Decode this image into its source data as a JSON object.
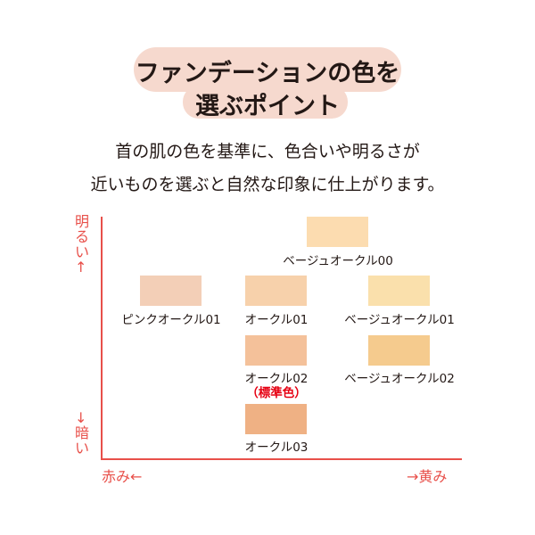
{
  "title": {
    "line1": "ファンデーションの色を",
    "line2": "選ぶポイント",
    "bg": "#f6d9ce"
  },
  "lead": {
    "line1": "首の肌の色を基準に、色合いや明るさが",
    "line2": "近いものを選ぶと自然な印象に仕上がります。"
  },
  "axes": {
    "color": "#e8504a",
    "top": "明るい↑",
    "bottom": "↓暗い",
    "left": "赤み←",
    "right": "→黄み"
  },
  "shades": [
    {
      "name": "ベージュオークル00",
      "color": "#fcdcb0"
    },
    {
      "name": "ピンクオークル01",
      "color": "#f3cfb7"
    },
    {
      "name": "オークル01",
      "color": "#f7d1ab"
    },
    {
      "name": "ベージュオークル01",
      "color": "#fae0ac"
    },
    {
      "name": "オークル02",
      "color": "#f4c19a",
      "note": "（標準色）"
    },
    {
      "name": "ベージュオークル02",
      "color": "#f5cb8e"
    },
    {
      "name": "オークル03",
      "color": "#efb184"
    }
  ]
}
